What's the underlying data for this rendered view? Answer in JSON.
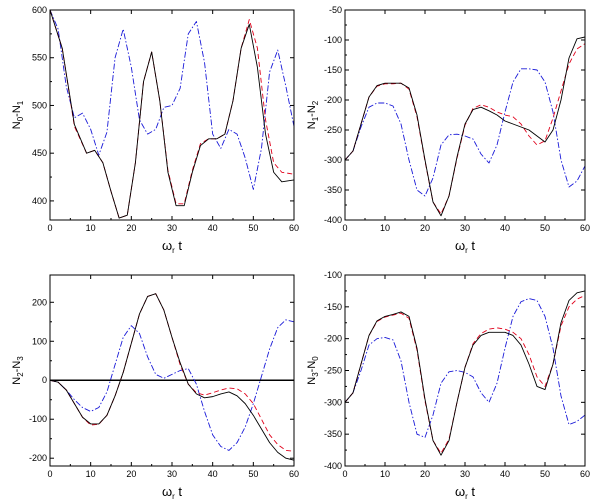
{
  "colors": {
    "series_1": "#000000",
    "series_2": "#e0001a",
    "series_3": "#1a1ad8",
    "zero_line": "#000000"
  },
  "chart_data": [
    {
      "type": "line",
      "ylabel": {
        "base": "N",
        "sub1": "0",
        "mid": "-N",
        "sub2": "1"
      },
      "xlabel": {
        "base": "ω",
        "sub": "r",
        "tail": " t"
      },
      "xlim": [
        0,
        60
      ],
      "ylim": [
        380,
        600
      ],
      "xticks": [
        "0",
        "10",
        "20",
        "30",
        "40",
        "50",
        "60"
      ],
      "yticks": [
        "400",
        "450",
        "500",
        "550",
        "600"
      ],
      "ytick_values": [
        400,
        450,
        500,
        550,
        600
      ],
      "series": [
        {
          "style": "solid",
          "x": [
            0,
            3,
            6,
            9,
            11,
            13,
            15,
            17,
            19,
            21,
            23,
            25,
            27,
            29,
            31,
            33,
            35,
            37,
            39,
            41,
            43,
            45,
            47,
            49,
            51,
            53,
            55,
            57,
            60
          ],
          "y": [
            600,
            560,
            480,
            450,
            453,
            440,
            410,
            382,
            385,
            440,
            525,
            556,
            505,
            430,
            395,
            395,
            430,
            458,
            465,
            465,
            470,
            505,
            560,
            585,
            540,
            470,
            430,
            420,
            422
          ]
        },
        {
          "style": "dashed",
          "x": [
            0,
            3,
            6,
            9,
            11,
            13,
            15,
            17,
            19,
            21,
            23,
            25,
            27,
            29,
            31,
            33,
            35,
            37,
            39,
            41,
            43,
            45,
            47,
            49,
            51,
            53,
            55,
            57,
            60
          ],
          "y": [
            600,
            560,
            478,
            450,
            453,
            440,
            410,
            382,
            385,
            440,
            525,
            556,
            505,
            432,
            397,
            397,
            432,
            460,
            465,
            465,
            470,
            505,
            560,
            590,
            560,
            485,
            440,
            430,
            428
          ]
        },
        {
          "style": "dashdot",
          "x": [
            0,
            2,
            4,
            6,
            8,
            10,
            12,
            14,
            16,
            18,
            20,
            22,
            24,
            26,
            28,
            30,
            32,
            34,
            36,
            38,
            40,
            42,
            44,
            46,
            48,
            50,
            52,
            54,
            56,
            58,
            60
          ],
          "y": [
            600,
            580,
            520,
            487,
            492,
            475,
            448,
            472,
            550,
            580,
            540,
            485,
            470,
            475,
            498,
            500,
            518,
            575,
            588,
            545,
            470,
            455,
            475,
            470,
            445,
            412,
            455,
            535,
            558,
            520,
            478
          ]
        }
      ]
    },
    {
      "type": "line",
      "ylabel": {
        "base": "N",
        "sub1": "1",
        "mid": "-N",
        "sub2": "2"
      },
      "xlabel": {
        "base": "ω",
        "sub": "r",
        "tail": " t"
      },
      "xlim": [
        0,
        60
      ],
      "ylim": [
        -400,
        -50
      ],
      "xticks": [
        "0",
        "10",
        "20",
        "30",
        "40",
        "50",
        "60"
      ],
      "yticks": [
        "-400",
        "-350",
        "-300",
        "-250",
        "-200",
        "-150",
        "-100",
        "-50"
      ],
      "ytick_values": [
        -400,
        -350,
        -300,
        -250,
        -200,
        -150,
        -100,
        -50
      ],
      "series": [
        {
          "style": "solid",
          "x": [
            0,
            2,
            4,
            6,
            8,
            10,
            12,
            14,
            16,
            18,
            20,
            22,
            24,
            26,
            28,
            30,
            32,
            34,
            36,
            38,
            40,
            42,
            44,
            46,
            48,
            50,
            52,
            54,
            56,
            58,
            60
          ],
          "y": [
            -300,
            -285,
            -240,
            -195,
            -176,
            -172,
            -172,
            -172,
            -180,
            -225,
            -300,
            -370,
            -393,
            -360,
            -295,
            -240,
            -216,
            -212,
            -218,
            -225,
            -235,
            -240,
            -245,
            -250,
            -260,
            -270,
            -250,
            -200,
            -130,
            -98,
            -95
          ]
        },
        {
          "style": "dashed",
          "x": [
            0,
            2,
            4,
            6,
            8,
            10,
            12,
            14,
            16,
            18,
            20,
            22,
            24,
            26,
            28,
            30,
            32,
            34,
            36,
            38,
            40,
            42,
            44,
            46,
            48,
            50,
            52,
            54,
            56,
            58,
            60
          ],
          "y": [
            -300,
            -285,
            -240,
            -195,
            -177,
            -173,
            -173,
            -172,
            -182,
            -228,
            -302,
            -370,
            -390,
            -360,
            -297,
            -242,
            -214,
            -208,
            -212,
            -220,
            -225,
            -228,
            -240,
            -260,
            -275,
            -268,
            -230,
            -185,
            -140,
            -115,
            -106
          ]
        },
        {
          "style": "dashdot",
          "x": [
            0,
            2,
            4,
            6,
            8,
            10,
            12,
            14,
            16,
            18,
            20,
            22,
            24,
            26,
            28,
            30,
            32,
            34,
            36,
            38,
            40,
            42,
            44,
            46,
            48,
            50,
            52,
            54,
            56,
            58,
            60
          ],
          "y": [
            -300,
            -285,
            -245,
            -212,
            -205,
            -205,
            -210,
            -240,
            -300,
            -350,
            -360,
            -330,
            -275,
            -258,
            -257,
            -260,
            -265,
            -290,
            -305,
            -275,
            -220,
            -170,
            -148,
            -148,
            -150,
            -170,
            -220,
            -300,
            -345,
            -335,
            -310
          ]
        }
      ]
    },
    {
      "type": "line",
      "ylabel": {
        "base": "N",
        "sub1": "2",
        "mid": "-N",
        "sub2": "3"
      },
      "xlabel": {
        "base": "ω",
        "sub": "r",
        "tail": " t"
      },
      "xlim": [
        0,
        60
      ],
      "ylim": [
        -220,
        270
      ],
      "xticks": [
        "0",
        "10",
        "20",
        "30",
        "40",
        "50",
        "60"
      ],
      "yticks": [
        "-200",
        "-100",
        "0",
        "100",
        "200"
      ],
      "ytick_values": [
        -200,
        -100,
        0,
        100,
        200
      ],
      "reference_line": 0,
      "series": [
        {
          "style": "solid",
          "x": [
            0,
            2,
            4,
            6,
            8,
            10,
            12,
            14,
            16,
            18,
            20,
            22,
            24,
            26,
            28,
            30,
            32,
            34,
            36,
            38,
            40,
            42,
            44,
            46,
            48,
            50,
            52,
            54,
            56,
            58,
            60
          ],
          "y": [
            0,
            -5,
            -25,
            -60,
            -95,
            -112,
            -112,
            -90,
            -40,
            20,
            95,
            170,
            215,
            222,
            180,
            110,
            45,
            -10,
            -35,
            -45,
            -42,
            -35,
            -30,
            -40,
            -60,
            -90,
            -125,
            -160,
            -185,
            -200,
            -205
          ]
        },
        {
          "style": "dashed",
          "x": [
            0,
            2,
            4,
            6,
            8,
            10,
            12,
            14,
            16,
            18,
            20,
            22,
            24,
            26,
            28,
            30,
            32,
            34,
            36,
            38,
            40,
            42,
            44,
            46,
            48,
            50,
            52,
            54,
            56,
            58,
            60
          ],
          "y": [
            0,
            -5,
            -25,
            -60,
            -95,
            -115,
            -113,
            -90,
            -40,
            20,
            95,
            170,
            215,
            222,
            180,
            110,
            40,
            -10,
            -32,
            -38,
            -32,
            -25,
            -20,
            -22,
            -35,
            -60,
            -100,
            -140,
            -165,
            -180,
            -182
          ]
        },
        {
          "style": "dashdot",
          "x": [
            0,
            2,
            4,
            6,
            8,
            10,
            12,
            14,
            16,
            18,
            20,
            22,
            24,
            26,
            28,
            30,
            32,
            34,
            36,
            38,
            40,
            42,
            44,
            46,
            48,
            50,
            52,
            54,
            56,
            58,
            60
          ],
          "y": [
            0,
            -5,
            -25,
            -50,
            -70,
            -80,
            -70,
            -30,
            40,
            110,
            140,
            120,
            60,
            15,
            5,
            15,
            25,
            30,
            -10,
            -80,
            -140,
            -170,
            -180,
            -160,
            -120,
            -60,
            10,
            80,
            135,
            155,
            150
          ]
        }
      ]
    },
    {
      "type": "line",
      "ylabel": {
        "base": "N",
        "sub1": "3",
        "mid": "-N",
        "sub2": "0"
      },
      "xlabel": {
        "base": "ω",
        "sub": "r",
        "tail": " t"
      },
      "xlim": [
        0,
        60
      ],
      "ylim": [
        -400,
        -100
      ],
      "xticks": [
        "0",
        "10",
        "20",
        "30",
        "40",
        "50",
        "60"
      ],
      "yticks": [
        "-400",
        "-350",
        "-300",
        "-250",
        "-200",
        "-150",
        "-100"
      ],
      "ytick_values": [
        -400,
        -350,
        -300,
        -250,
        -200,
        -150,
        -100
      ],
      "series": [
        {
          "style": "solid",
          "x": [
            0,
            2,
            4,
            6,
            8,
            10,
            12,
            14,
            16,
            18,
            20,
            22,
            24,
            26,
            28,
            30,
            32,
            34,
            36,
            38,
            40,
            42,
            44,
            46,
            48,
            50,
            52,
            54,
            56,
            58,
            60
          ],
          "y": [
            -300,
            -285,
            -240,
            -195,
            -172,
            -165,
            -162,
            -158,
            -165,
            -215,
            -295,
            -360,
            -383,
            -360,
            -300,
            -245,
            -210,
            -195,
            -190,
            -190,
            -190,
            -195,
            -210,
            -240,
            -275,
            -280,
            -240,
            -175,
            -140,
            -128,
            -125
          ]
        },
        {
          "style": "dashed",
          "x": [
            0,
            2,
            4,
            6,
            8,
            10,
            12,
            14,
            16,
            18,
            20,
            22,
            24,
            26,
            28,
            30,
            32,
            34,
            36,
            38,
            40,
            42,
            44,
            46,
            48,
            50,
            52,
            54,
            56,
            58,
            60
          ],
          "y": [
            -300,
            -285,
            -240,
            -195,
            -173,
            -166,
            -163,
            -160,
            -168,
            -218,
            -298,
            -360,
            -380,
            -358,
            -300,
            -245,
            -208,
            -192,
            -185,
            -183,
            -185,
            -190,
            -200,
            -225,
            -260,
            -275,
            -240,
            -180,
            -150,
            -138,
            -132
          ]
        },
        {
          "style": "dashdot",
          "x": [
            0,
            2,
            4,
            6,
            8,
            10,
            12,
            14,
            16,
            18,
            20,
            22,
            24,
            26,
            28,
            30,
            32,
            34,
            36,
            38,
            40,
            42,
            44,
            46,
            48,
            50,
            52,
            54,
            56,
            58,
            60
          ],
          "y": [
            -300,
            -285,
            -250,
            -210,
            -200,
            -198,
            -202,
            -235,
            -300,
            -350,
            -355,
            -320,
            -270,
            -252,
            -250,
            -253,
            -260,
            -285,
            -300,
            -270,
            -215,
            -165,
            -142,
            -137,
            -140,
            -165,
            -215,
            -290,
            -335,
            -330,
            -320
          ]
        }
      ]
    }
  ]
}
